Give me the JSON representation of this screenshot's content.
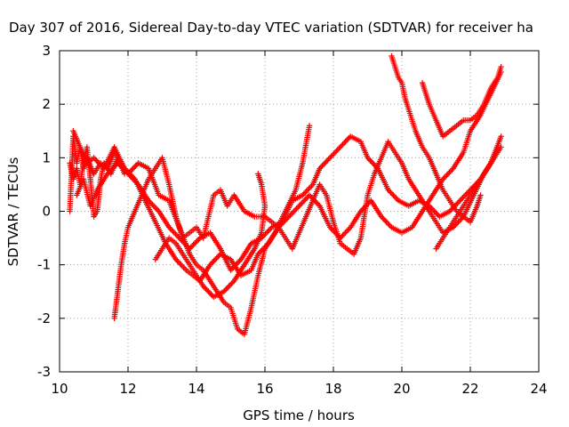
{
  "chart_data": {
    "type": "scatter",
    "title": "Day 307 of 2016, Sidereal Day-to-day VTEC variation (SDTVAR) for receiver ha",
    "xlabel": "GPS time / hours",
    "ylabel": "SDTVAR / TECUs",
    "xlim": [
      10,
      24
    ],
    "ylim": [
      -3,
      3
    ],
    "xticks": [
      "10",
      "12",
      "14",
      "16",
      "18",
      "20",
      "22",
      "24"
    ],
    "yticks": [
      "3",
      "2",
      "1",
      "0",
      "-1",
      "-2",
      "-3"
    ],
    "grid": true,
    "marker": "plus",
    "color": "#ff0000",
    "series": [
      {
        "name": "",
        "points": [
          [
            10.3,
            0.0
          ],
          [
            10.4,
            1.4
          ],
          [
            10.5,
            0.9
          ],
          [
            10.6,
            1.2
          ],
          [
            10.7,
            0.8
          ],
          [
            10.8,
            1.0
          ],
          [
            11.0,
            0.7
          ],
          [
            11.2,
            0.9
          ],
          [
            11.4,
            0.8
          ],
          [
            11.6,
            1.1
          ],
          [
            11.8,
            0.9
          ],
          [
            12.0,
            0.7
          ],
          [
            12.3,
            0.9
          ],
          [
            12.6,
            0.8
          ],
          [
            12.9,
            0.3
          ],
          [
            13.2,
            0.2
          ],
          [
            13.5,
            -0.3
          ],
          [
            13.8,
            -0.8
          ],
          [
            14.0,
            -1.0
          ],
          [
            14.2,
            -1.1
          ],
          [
            14.5,
            -1.4
          ],
          [
            14.8,
            -1.7
          ],
          [
            15.0,
            -1.8
          ],
          [
            15.2,
            -2.2
          ],
          [
            15.4,
            -2.3
          ],
          [
            15.6,
            -1.8
          ],
          [
            15.8,
            -1.2
          ],
          [
            16.0,
            -0.7
          ],
          [
            16.3,
            -0.4
          ],
          [
            16.6,
            0.0
          ],
          [
            16.9,
            0.4
          ],
          [
            17.1,
            0.9
          ],
          [
            17.3,
            1.6
          ]
        ]
      },
      {
        "name": "",
        "points": [
          [
            10.4,
            1.5
          ],
          [
            10.6,
            1.2
          ],
          [
            10.8,
            0.9
          ],
          [
            11.0,
            1.0
          ],
          [
            11.3,
            0.8
          ],
          [
            11.6,
            1.2
          ],
          [
            11.9,
            0.8
          ],
          [
            12.2,
            0.6
          ],
          [
            12.5,
            0.2
          ],
          [
            12.8,
            -0.2
          ],
          [
            13.1,
            -0.6
          ],
          [
            13.4,
            -0.9
          ],
          [
            13.7,
            -1.1
          ],
          [
            13.9,
            -1.2
          ],
          [
            14.1,
            -1.3
          ],
          [
            14.4,
            -1.0
          ],
          [
            14.7,
            -0.8
          ],
          [
            15.0,
            -0.9
          ],
          [
            15.3,
            -1.2
          ],
          [
            15.6,
            -1.1
          ],
          [
            15.8,
            -0.8
          ],
          [
            16.1,
            -0.6
          ],
          [
            16.4,
            -0.3
          ],
          [
            16.7,
            -0.1
          ],
          [
            17.0,
            0.1
          ],
          [
            17.3,
            0.3
          ],
          [
            17.6,
            0.1
          ],
          [
            17.9,
            -0.3
          ],
          [
            18.2,
            -0.5
          ],
          [
            18.5,
            -0.3
          ],
          [
            18.8,
            0.0
          ],
          [
            19.1,
            0.2
          ],
          [
            19.4,
            -0.1
          ],
          [
            19.7,
            -0.3
          ],
          [
            20.0,
            -0.4
          ],
          [
            20.3,
            -0.3
          ],
          [
            20.6,
            0.0
          ],
          [
            20.9,
            0.3
          ],
          [
            21.2,
            0.6
          ],
          [
            21.5,
            0.8
          ],
          [
            21.8,
            1.1
          ],
          [
            22.0,
            1.5
          ],
          [
            22.3,
            1.8
          ],
          [
            22.6,
            2.2
          ],
          [
            22.9,
            2.6
          ]
        ]
      },
      {
        "name": "",
        "points": [
          [
            10.5,
            0.3
          ],
          [
            10.7,
            0.6
          ],
          [
            10.9,
            0.1
          ],
          [
            11.1,
            0.4
          ],
          [
            11.4,
            0.7
          ],
          [
            11.7,
            0.9
          ],
          [
            12.0,
            0.7
          ],
          [
            12.3,
            0.5
          ],
          [
            12.6,
            0.2
          ],
          [
            12.9,
            0.0
          ],
          [
            13.2,
            -0.3
          ],
          [
            13.5,
            -0.5
          ],
          [
            13.8,
            -0.7
          ],
          [
            14.1,
            -0.5
          ],
          [
            14.4,
            -0.4
          ],
          [
            14.7,
            -0.7
          ],
          [
            15.0,
            -1.1
          ],
          [
            15.3,
            -0.9
          ],
          [
            15.6,
            -0.6
          ],
          [
            15.9,
            -0.5
          ],
          [
            16.2,
            -0.3
          ],
          [
            16.5,
            -0.2
          ],
          [
            16.8,
            0.2
          ],
          [
            17.1,
            0.3
          ],
          [
            17.4,
            0.5
          ],
          [
            17.6,
            0.8
          ],
          [
            17.9,
            1.0
          ],
          [
            18.2,
            1.2
          ],
          [
            18.5,
            1.4
          ],
          [
            18.8,
            1.3
          ],
          [
            19.0,
            1.0
          ],
          [
            19.3,
            0.8
          ],
          [
            19.6,
            0.4
          ],
          [
            19.9,
            0.2
          ],
          [
            20.2,
            0.1
          ],
          [
            20.5,
            0.2
          ],
          [
            20.8,
            0.1
          ],
          [
            21.1,
            -0.1
          ],
          [
            21.4,
            0.0
          ],
          [
            21.7,
            0.2
          ],
          [
            22.0,
            0.4
          ],
          [
            22.3,
            0.6
          ],
          [
            22.6,
            0.9
          ],
          [
            22.9,
            1.4
          ]
        ]
      },
      {
        "name": "",
        "points": [
          [
            11.6,
            -2.0
          ],
          [
            11.7,
            -1.5
          ],
          [
            11.8,
            -1.0
          ],
          [
            11.9,
            -0.6
          ],
          [
            12.0,
            -0.3
          ],
          [
            12.2,
            0.0
          ],
          [
            12.4,
            0.3
          ],
          [
            12.6,
            0.6
          ],
          [
            12.8,
            0.8
          ],
          [
            13.0,
            1.0
          ],
          [
            13.2,
            0.5
          ],
          [
            13.4,
            -0.1
          ],
          [
            13.6,
            -0.5
          ],
          [
            13.8,
            -0.4
          ],
          [
            14.0,
            -0.3
          ],
          [
            14.2,
            -0.5
          ],
          [
            14.5,
            0.3
          ],
          [
            14.7,
            0.4
          ],
          [
            14.9,
            0.1
          ],
          [
            15.1,
            0.3
          ],
          [
            15.4,
            0.0
          ],
          [
            15.7,
            -0.1
          ],
          [
            16.0,
            -0.1
          ],
          [
            16.2,
            -0.2
          ],
          [
            16.4,
            -0.3
          ],
          [
            16.6,
            -0.5
          ],
          [
            16.8,
            -0.7
          ],
          [
            17.0,
            -0.4
          ],
          [
            17.2,
            -0.1
          ],
          [
            17.4,
            0.2
          ],
          [
            17.6,
            0.5
          ],
          [
            17.8,
            0.3
          ],
          [
            18.0,
            -0.2
          ],
          [
            18.2,
            -0.6
          ],
          [
            18.4,
            -0.7
          ],
          [
            18.6,
            -0.8
          ],
          [
            18.8,
            -0.5
          ],
          [
            19.0,
            0.3
          ],
          [
            19.2,
            0.7
          ],
          [
            19.4,
            1.0
          ],
          [
            19.6,
            1.3
          ],
          [
            19.8,
            1.1
          ],
          [
            20.0,
            0.9
          ],
          [
            20.2,
            0.6
          ],
          [
            20.5,
            0.3
          ],
          [
            20.8,
            0.0
          ],
          [
            21.0,
            -0.2
          ],
          [
            21.2,
            -0.4
          ],
          [
            21.5,
            -0.3
          ],
          [
            21.8,
            -0.1
          ],
          [
            22.1,
            0.3
          ],
          [
            22.4,
            0.7
          ],
          [
            22.7,
            1.0
          ],
          [
            22.9,
            1.2
          ]
        ]
      },
      {
        "name": "",
        "points": [
          [
            12.8,
            -0.9
          ],
          [
            13.0,
            -0.7
          ],
          [
            13.2,
            -0.5
          ],
          [
            13.4,
            -0.6
          ],
          [
            13.6,
            -0.8
          ],
          [
            13.8,
            -1.0
          ],
          [
            14.0,
            -1.2
          ],
          [
            14.2,
            -1.4
          ],
          [
            14.5,
            -1.6
          ],
          [
            14.8,
            -1.5
          ],
          [
            15.1,
            -1.3
          ],
          [
            15.4,
            -1.0
          ],
          [
            15.7,
            -0.7
          ],
          [
            15.9,
            -0.4
          ],
          [
            16.0,
            0.1
          ],
          [
            15.9,
            0.5
          ],
          [
            15.8,
            0.7
          ]
        ]
      },
      {
        "name": "",
        "points": [
          [
            19.7,
            2.9
          ],
          [
            19.8,
            2.7
          ],
          [
            19.9,
            2.5
          ],
          [
            20.0,
            2.4
          ],
          [
            20.1,
            2.1
          ],
          [
            20.2,
            1.9
          ],
          [
            20.4,
            1.5
          ],
          [
            20.6,
            1.2
          ],
          [
            20.8,
            1.0
          ],
          [
            21.0,
            0.7
          ],
          [
            21.2,
            0.4
          ],
          [
            21.4,
            0.2
          ],
          [
            21.6,
            0.0
          ],
          [
            21.8,
            -0.1
          ],
          [
            22.0,
            -0.2
          ],
          [
            22.2,
            0.1
          ],
          [
            22.3,
            0.3
          ]
        ]
      },
      {
        "name": "",
        "points": [
          [
            20.6,
            2.4
          ],
          [
            20.7,
            2.2
          ],
          [
            20.8,
            2.0
          ],
          [
            21.0,
            1.7
          ],
          [
            21.2,
            1.4
          ],
          [
            21.4,
            1.5
          ],
          [
            21.6,
            1.6
          ],
          [
            21.8,
            1.7
          ],
          [
            22.0,
            1.7
          ],
          [
            22.2,
            1.8
          ],
          [
            22.4,
            2.0
          ],
          [
            22.6,
            2.3
          ],
          [
            22.8,
            2.5
          ],
          [
            22.9,
            2.7
          ]
        ]
      },
      {
        "name": "",
        "points": [
          [
            21.0,
            -0.7
          ],
          [
            21.2,
            -0.5
          ],
          [
            21.4,
            -0.3
          ],
          [
            21.6,
            -0.1
          ],
          [
            21.8,
            0.1
          ],
          [
            22.0,
            0.3
          ],
          [
            22.2,
            0.5
          ],
          [
            22.4,
            0.7
          ],
          [
            22.6,
            0.9
          ],
          [
            22.8,
            1.2
          ]
        ]
      },
      {
        "name": "",
        "points": [
          [
            10.3,
            0.9
          ],
          [
            10.4,
            0.6
          ],
          [
            10.5,
            0.8
          ],
          [
            10.6,
            0.5
          ],
          [
            10.7,
            0.9
          ],
          [
            10.8,
            1.2
          ],
          [
            10.9,
            0.6
          ],
          [
            11.0,
            -0.1
          ],
          [
            11.1,
            0.0
          ],
          [
            11.2,
            0.6
          ],
          [
            11.3,
            0.9
          ],
          [
            11.5,
            0.7
          ],
          [
            11.7,
            1.0
          ],
          [
            11.9,
            0.7
          ]
        ]
      }
    ]
  }
}
